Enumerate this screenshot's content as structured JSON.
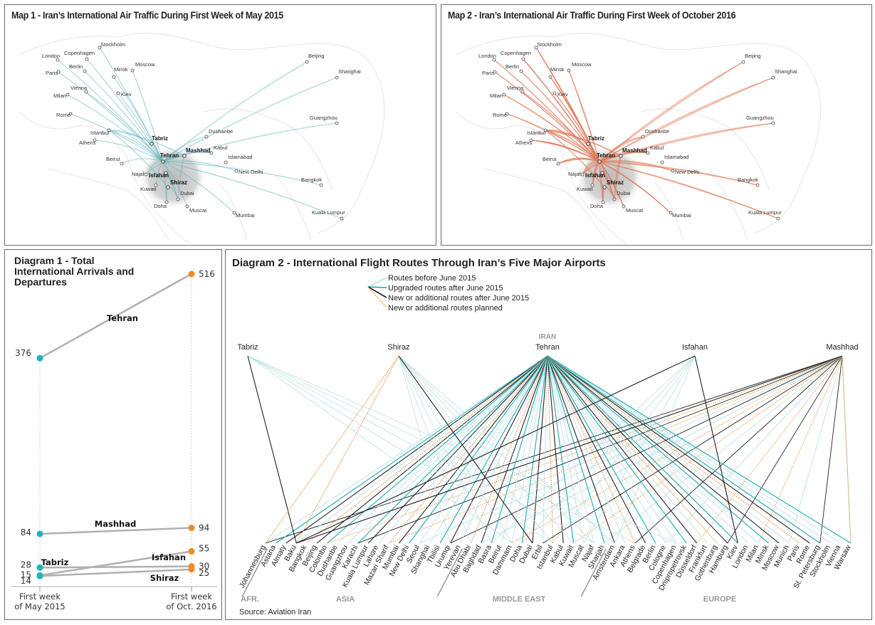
{
  "map1": {
    "title": "Map 1 - Iran’s International Air Traffic During First Week of May 2015",
    "route_color": "#5fb3ba",
    "cities": [
      "Stockholm",
      "London",
      "Copenhagen",
      "Berlin",
      "Paris",
      "Minsk",
      "Moscow",
      "Vienna",
      "Milan",
      "Kiev",
      "Rome",
      "Istanbul",
      "Athens",
      "Beirut",
      "Najaf",
      "Kuwait",
      "Doha",
      "Dubai",
      "Muscat",
      "Dushanbe",
      "Kabul",
      "Islamabad",
      "New Delhi",
      "Mumbai",
      "Beijing",
      "Shanghai",
      "Guangzhou",
      "Bangkok",
      "Kuala Lumpur"
    ],
    "hubs": [
      "Tabriz",
      "Tehran",
      "Mashhad",
      "Isfahan",
      "Shiraz"
    ]
  },
  "map2": {
    "title": "Map 2 - Iran’s International Air Traffic During First Week of October 2016",
    "route_color": "#e07a5a",
    "cities": [
      "Stockholm",
      "London",
      "Copenhagen",
      "Berlin",
      "Paris",
      "Minsk",
      "Moscow",
      "Vienna",
      "Milan",
      "Kiev",
      "Rome",
      "Istanbul",
      "Athens",
      "Beirut",
      "Najaf",
      "Kuwait",
      "Doha",
      "Dubai",
      "Muscat",
      "Dushanbe",
      "Kabul",
      "Islamabad",
      "New Delhi",
      "Mumbai",
      "Beijing",
      "Shanghai",
      "Guangzhou",
      "Bangkok",
      "Kuala Lumpur"
    ],
    "hubs": [
      "Tabriz",
      "Tehran",
      "Mashhad",
      "Isfahan",
      "Shiraz"
    ]
  },
  "chart_data": [
    {
      "type": "line",
      "title": "Diagram 1 - Total International Arrivals and Departures",
      "categories": [
        "First week of May 2015",
        "First week of Oct. 2016"
      ],
      "x_labels": [
        [
          "First week",
          "of May 2015"
        ],
        [
          "First week",
          "of Oct. 2016"
        ]
      ],
      "series": [
        {
          "name": "Tehran",
          "values": [
            376,
            516
          ]
        },
        {
          "name": "Mashhad",
          "values": [
            84,
            94
          ]
        },
        {
          "name": "Isfahan",
          "values": [
            15,
            55
          ]
        },
        {
          "name": "Tabriz",
          "values": [
            28,
            30
          ]
        },
        {
          "name": "Shiraz",
          "values": [
            14,
            25
          ]
        }
      ],
      "colors": {
        "start": "#1fb3bc",
        "end": "#f08a2c",
        "line": "#b0b0b0"
      },
      "ylim": [
        0,
        530
      ]
    },
    {
      "type": "diagram",
      "title": "Diagram 2 - International Flight Routes Through Iran’s Five Major Airports",
      "legend": [
        {
          "label": "Routes before June 2015",
          "color": "#bfe0e3",
          "style": "solid"
        },
        {
          "label": "Upgraded routes after June 2015",
          "color": "#17a9b3",
          "style": "solid"
        },
        {
          "label": "New or additional routes after June 2015",
          "color": "#222222",
          "style": "solid"
        },
        {
          "label": "New or additional routes planned",
          "color": "#f08a2c",
          "style": "dotted"
        }
      ],
      "hub_group_label": "IRAN",
      "hubs": [
        "Tabriz",
        "Shiraz",
        "Tehran",
        "Isfahan",
        "Mashhad"
      ],
      "regions": [
        "AFR.",
        "ASIA",
        "MIDDLE EAST",
        "EUROPE"
      ],
      "destinations": [
        {
          "name": "Johannesburg",
          "region": "AFR."
        },
        {
          "name": "Astana",
          "region": "ASIA"
        },
        {
          "name": "Almaty",
          "region": "ASIA"
        },
        {
          "name": "Baku",
          "region": "ASIA"
        },
        {
          "name": "Bangkok",
          "region": "ASIA"
        },
        {
          "name": "Beijing",
          "region": "ASIA"
        },
        {
          "name": "Colombo",
          "region": "ASIA"
        },
        {
          "name": "Dushanbe",
          "region": "ASIA"
        },
        {
          "name": "Guangzhou",
          "region": "ASIA"
        },
        {
          "name": "Karachi",
          "region": "ASIA"
        },
        {
          "name": "Kuala Lumpur",
          "region": "ASIA"
        },
        {
          "name": "Lahore",
          "region": "ASIA"
        },
        {
          "name": "Mazari Sharif",
          "region": "ASIA"
        },
        {
          "name": "Mumbai",
          "region": "ASIA"
        },
        {
          "name": "New Delhi",
          "region": "ASIA"
        },
        {
          "name": "Seoul",
          "region": "ASIA"
        },
        {
          "name": "Shanghai",
          "region": "ASIA"
        },
        {
          "name": "Tbilisi",
          "region": "ASIA"
        },
        {
          "name": "Urumqi",
          "region": "ASIA"
        },
        {
          "name": "Yerevan",
          "region": "ASIA"
        },
        {
          "name": "Abu Dhabi",
          "region": "MIDDLE EAST"
        },
        {
          "name": "Baghdad",
          "region": "MIDDLE EAST"
        },
        {
          "name": "Basra",
          "region": "MIDDLE EAST"
        },
        {
          "name": "Beirut",
          "region": "MIDDLE EAST"
        },
        {
          "name": "Dammam",
          "region": "MIDDLE EAST"
        },
        {
          "name": "Doha",
          "region": "MIDDLE EAST"
        },
        {
          "name": "Dubai",
          "region": "MIDDLE EAST"
        },
        {
          "name": "Erbil",
          "region": "MIDDLE EAST"
        },
        {
          "name": "Istanbul",
          "region": "MIDDLE EAST"
        },
        {
          "name": "Kabul",
          "region": "MIDDLE EAST"
        },
        {
          "name": "Kuwait",
          "region": "MIDDLE EAST"
        },
        {
          "name": "Muscat",
          "region": "MIDDLE EAST"
        },
        {
          "name": "Najaf",
          "region": "MIDDLE EAST"
        },
        {
          "name": "Sharjah",
          "region": "MIDDLE EAST"
        },
        {
          "name": "Amsterdam",
          "region": "EUROPE"
        },
        {
          "name": "Ankara",
          "region": "EUROPE"
        },
        {
          "name": "Athens",
          "region": "EUROPE"
        },
        {
          "name": "Belgrade",
          "region": "EUROPE"
        },
        {
          "name": "Berlin",
          "region": "EUROPE"
        },
        {
          "name": "Cologne",
          "region": "EUROPE"
        },
        {
          "name": "Copenhagen",
          "region": "EUROPE"
        },
        {
          "name": "Dnipropetrovsk",
          "region": "EUROPE"
        },
        {
          "name": "Düsseldorf",
          "region": "EUROPE"
        },
        {
          "name": "Frankfurt",
          "region": "EUROPE"
        },
        {
          "name": "Gothenburg",
          "region": "EUROPE"
        },
        {
          "name": "Hamburg",
          "region": "EUROPE"
        },
        {
          "name": "Kiev",
          "region": "EUROPE"
        },
        {
          "name": "London",
          "region": "EUROPE"
        },
        {
          "name": "Milan",
          "region": "EUROPE"
        },
        {
          "name": "Minsk",
          "region": "EUROPE"
        },
        {
          "name": "Moscow",
          "region": "EUROPE"
        },
        {
          "name": "Munich",
          "region": "EUROPE"
        },
        {
          "name": "Paris",
          "region": "EUROPE"
        },
        {
          "name": "Rome",
          "region": "EUROPE"
        },
        {
          "name": "St. Petersburg",
          "region": "EUROPE"
        },
        {
          "name": "Stockholm",
          "region": "EUROPE"
        },
        {
          "name": "Vienna",
          "region": "EUROPE"
        },
        {
          "name": "Warsaw",
          "region": "EUROPE"
        }
      ],
      "source": "Source: Aviation Iran"
    }
  ]
}
